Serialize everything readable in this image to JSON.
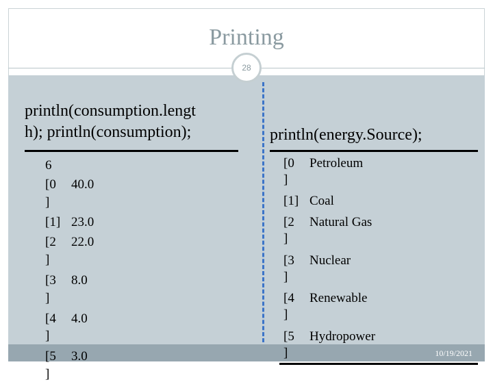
{
  "slide": {
    "title": "Printing",
    "page_number": "28",
    "date": "10/19/2021"
  },
  "left": {
    "heading_line1": "println(consumption.lengt",
    "heading_line2": "h); println(consumption);",
    "length_value": "6",
    "entries": [
      {
        "index": "[0",
        "bracket": "]",
        "value": "40.0"
      },
      {
        "index": "[1]",
        "bracket": "",
        "value": "23.0"
      },
      {
        "index": "[2",
        "bracket": "]",
        "value": "22.0"
      },
      {
        "index": "[3",
        "bracket": "]",
        "value": "8.0"
      },
      {
        "index": "[4",
        "bracket": "]",
        "value": "4.0"
      },
      {
        "index": "[5",
        "bracket": "]",
        "value": "3.0"
      }
    ]
  },
  "right": {
    "heading": "println(energy.Source);",
    "entries": [
      {
        "index": "[0",
        "bracket": "]",
        "value": "Petroleum"
      },
      {
        "index": "[1]",
        "bracket": "",
        "value": "Coal"
      },
      {
        "index": "[2",
        "bracket": "]",
        "value": "Natural Gas"
      },
      {
        "index": "[3",
        "bracket": "]",
        "value": "Nuclear"
      },
      {
        "index": "[4",
        "bracket": "]",
        "value": "Renewable"
      },
      {
        "index": "[5",
        "bracket": "]",
        "value": "Hydropower"
      }
    ]
  }
}
